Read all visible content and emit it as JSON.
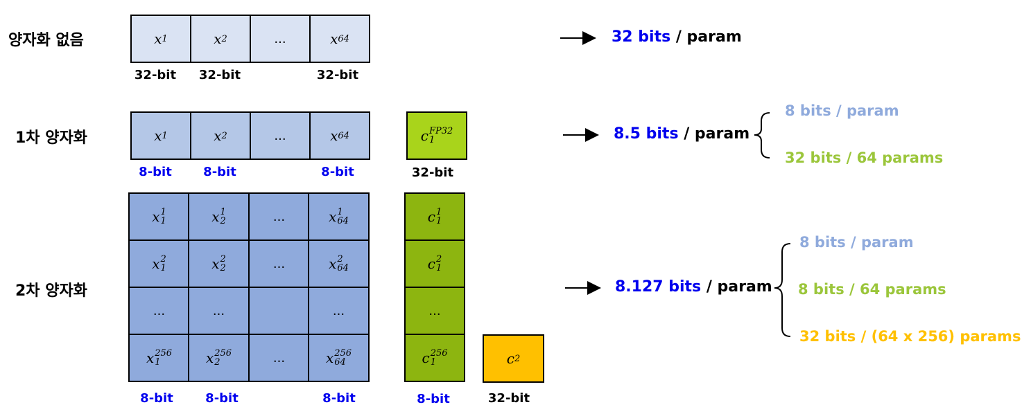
{
  "colors": {
    "row1_fill": "#dae3f3",
    "row2_fill": "#b4c7e7",
    "row3_fill": "#8faadc",
    "c1_fill": "#a9d41b",
    "c_second_fill": "#8db510",
    "c2_fill": "#ffc000",
    "label_blue": "#0000ee",
    "param_bits_color": "#8faadc",
    "const_bits_color": "#9bc63b",
    "c2_bits_color": "#ffc000"
  },
  "rows": {
    "none": {
      "label": "양자화 없음",
      "cells": [
        {
          "base": "x",
          "sub": "1"
        },
        {
          "base": "x",
          "sub": "2"
        },
        {
          "dots": "..."
        },
        {
          "base": "x",
          "sub": "64"
        }
      ],
      "bit_labels": [
        "32-bit",
        "32-bit",
        "32-bit"
      ],
      "summary": {
        "value": "32 bits",
        "rest": " / param"
      }
    },
    "first": {
      "label": "1차 양자화",
      "cells": [
        {
          "base": "x",
          "sub": "1"
        },
        {
          "base": "x",
          "sub": "2"
        },
        {
          "dots": "..."
        },
        {
          "base": "x",
          "sub": "64"
        }
      ],
      "bit_labels": [
        "8-bit",
        "8-bit",
        "8-bit"
      ],
      "const": {
        "base": "c",
        "sub": "1",
        "sup": "FP32",
        "bit_label": "32-bit"
      },
      "summary": {
        "value": "8.5 bits",
        "rest": " / param"
      },
      "breakdown": [
        "8 bits / param",
        "32 bits / 64 params"
      ]
    },
    "second": {
      "label": "2차 양자화",
      "grid": [
        [
          {
            "base": "x",
            "sub": "1",
            "sup": "1"
          },
          {
            "base": "x",
            "sub": "2",
            "sup": "1"
          },
          {
            "dots": "..."
          },
          {
            "base": "x",
            "sub": "64",
            "sup": "1"
          }
        ],
        [
          {
            "base": "x",
            "sub": "1",
            "sup": "2"
          },
          {
            "base": "x",
            "sub": "2",
            "sup": "2"
          },
          {
            "dots": "..."
          },
          {
            "base": "x",
            "sub": "64",
            "sup": "2"
          }
        ],
        [
          {
            "dots": "..."
          },
          {
            "dots": "..."
          },
          {
            "dots": ""
          },
          {
            "dots": "..."
          }
        ],
        [
          {
            "base": "x",
            "sub": "1",
            "sup": "256"
          },
          {
            "base": "x",
            "sub": "2",
            "sup": "256"
          },
          {
            "dots": "..."
          },
          {
            "base": "x",
            "sub": "64",
            "sup": "256"
          }
        ]
      ],
      "bit_labels": [
        "8-bit",
        "8-bit",
        "8-bit"
      ],
      "const_column": [
        {
          "base": "c",
          "sub": "1",
          "sup": "1"
        },
        {
          "base": "c",
          "sub": "1",
          "sup": "2"
        },
        {
          "dots": "..."
        },
        {
          "base": "c",
          "sub": "1",
          "sup": "256"
        }
      ],
      "const_bit_label": "8-bit",
      "c2": {
        "base": "c",
        "sub": "2",
        "bit_label": "32-bit"
      },
      "summary": {
        "value": "8.127 bits",
        "rest": " / param"
      },
      "breakdown": [
        "8 bits / param",
        "8 bits / 64 params",
        "32 bits / (64 x 256) params"
      ]
    }
  }
}
